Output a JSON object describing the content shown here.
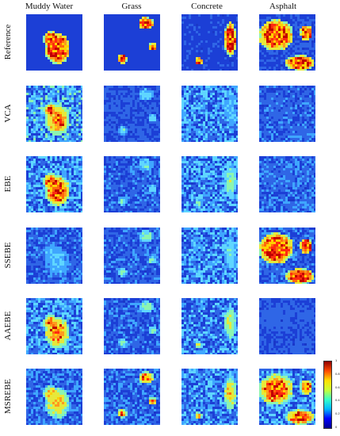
{
  "columns": [
    "Muddy Water",
    "Grass",
    "Concrete",
    "Asphalt"
  ],
  "rows": [
    "Reference",
    "VCA",
    "EBE",
    "SSEBE",
    "AAEBE",
    "MSREBE"
  ],
  "colorbar": {
    "ticks": [
      "1",
      "0.8",
      "0.6",
      "0.4",
      "0.2",
      "0"
    ],
    "colors": [
      "#00008f",
      "#0000ff",
      "#00b8ff",
      "#36ffc9",
      "#c9ff36",
      "#ffe000",
      "#ff4a00",
      "#8f0000"
    ]
  },
  "tile_colors": {
    "background": "#1c3fd6",
    "noise": [
      "#1a38c8",
      "#2f66e6",
      "#3fa6ff",
      "#5fd6ff",
      "#8cf5b0",
      "#e7e83a",
      "#ff9a1f",
      "#e8321a"
    ],
    "hot": [
      "#ff2a10",
      "#ff6a0a",
      "#ffd000",
      "#c00000"
    ]
  }
}
